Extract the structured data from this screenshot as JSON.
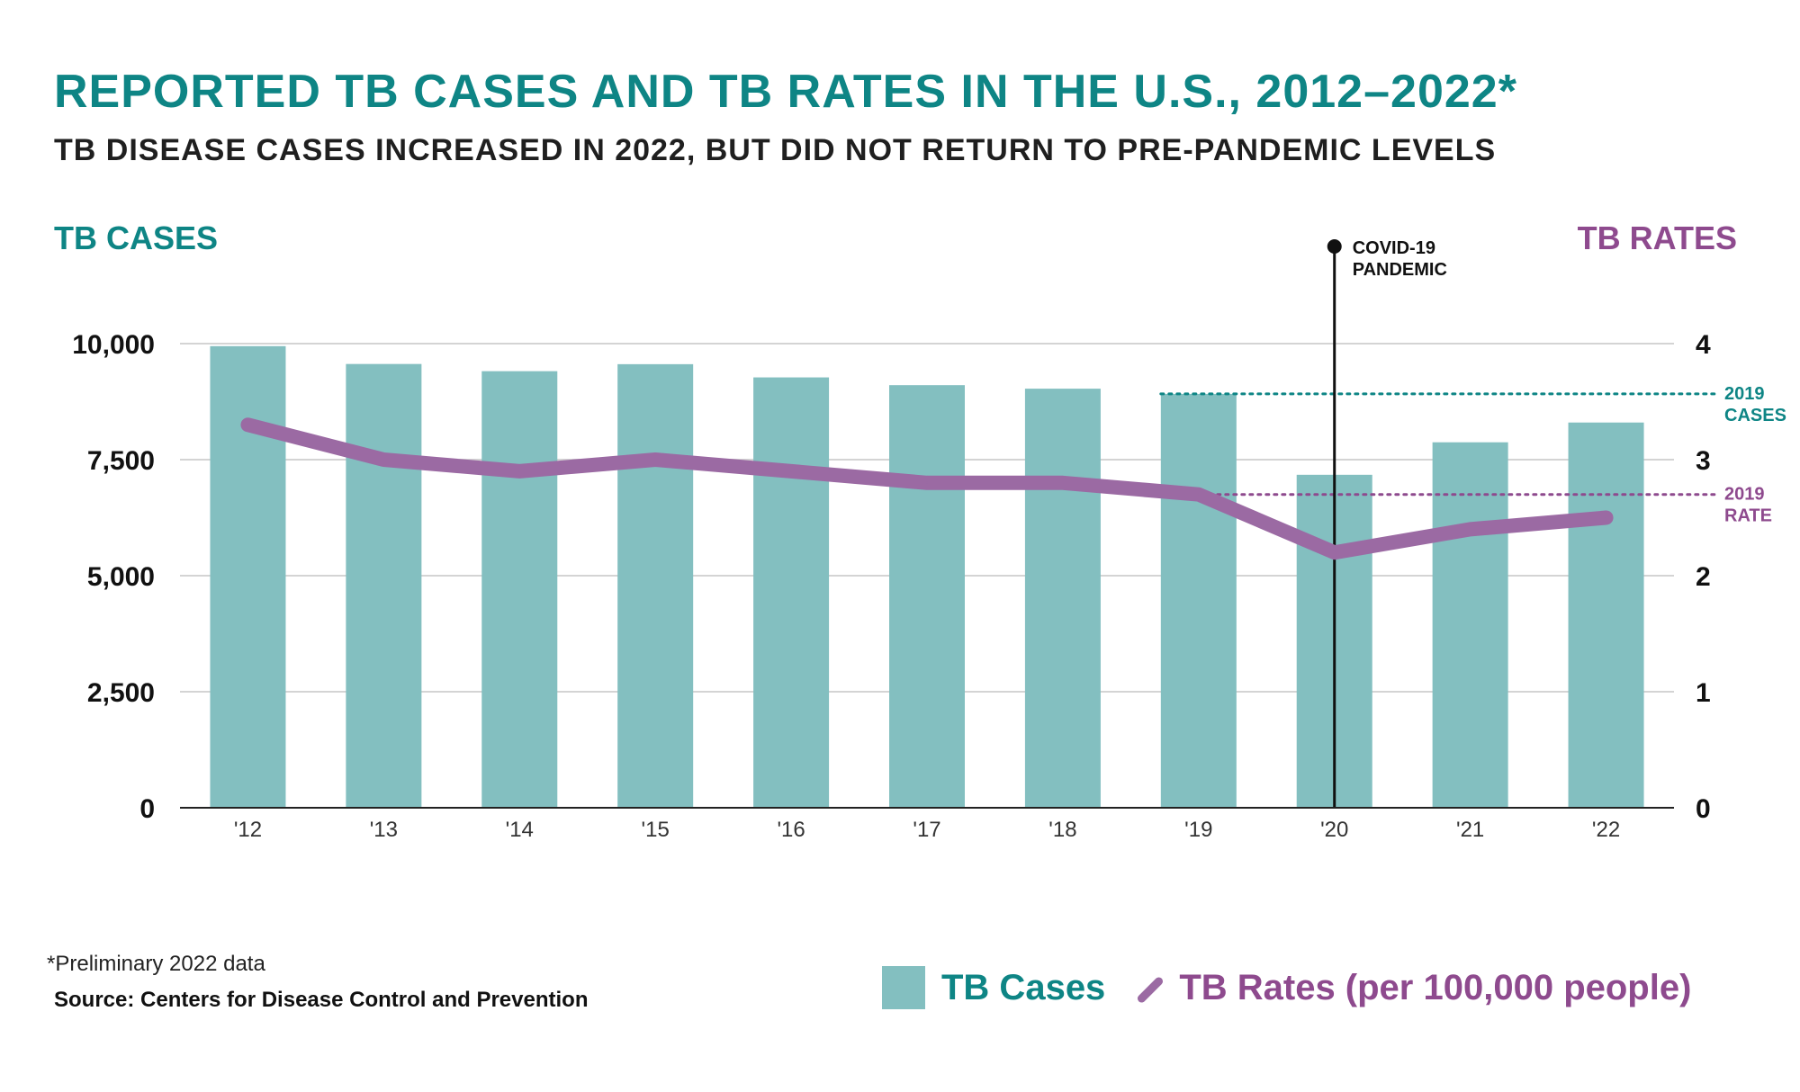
{
  "header": {
    "title": "REPORTED TB CASES AND TB RATES IN THE U.S., 2012–2022*",
    "subtitle": "TB DISEASE CASES INCREASED IN 2022, BUT DID NOT RETURN TO PRE-PANDEMIC LEVELS"
  },
  "chart_data": {
    "type": "bar+line",
    "categories": [
      "'12",
      "'13",
      "'14",
      "'15",
      "'16",
      "'17",
      "'18",
      "'19",
      "'20",
      "'21",
      "'22"
    ],
    "series": [
      {
        "name": "TB Cases",
        "type": "bar",
        "axis": "left",
        "color": "#83bfc0",
        "values": [
          9945,
          9561,
          9406,
          9557,
          9272,
          9105,
          9029,
          8916,
          7174,
          7874,
          8300
        ]
      },
      {
        "name": "TB Rates (per 100,000 people)",
        "type": "line",
        "axis": "right",
        "color": "#9b6aa3",
        "values": [
          3.3,
          3.0,
          2.9,
          3.0,
          2.9,
          2.8,
          2.8,
          2.7,
          2.2,
          2.4,
          2.5
        ]
      }
    ],
    "y_left": {
      "label": "TB CASES",
      "ticks": [
        0,
        2500,
        5000,
        7500,
        10000
      ],
      "tick_labels": [
        "0",
        "2,500",
        "5,000",
        "7,500",
        "10,000"
      ],
      "range": [
        0,
        10000
      ]
    },
    "y_right": {
      "label": "TB RATES",
      "ticks": [
        0,
        1,
        2,
        3,
        4
      ],
      "tick_labels": [
        "0",
        "1",
        "2",
        "3",
        "4"
      ],
      "range": [
        0,
        4
      ]
    },
    "grid": true,
    "reference_lines": [
      {
        "label_lines": [
          "2019",
          "CASES"
        ],
        "value": 8916,
        "axis": "left",
        "from_category": "'19",
        "color": "#0e8585"
      },
      {
        "label_lines": [
          "2019",
          "RATE"
        ],
        "value": 2.7,
        "axis": "right",
        "from_category": "'19",
        "color": "#8e4a8e"
      }
    ],
    "event_marker": {
      "label_lines": [
        "COVID-19",
        "PANDEMIC"
      ],
      "category": "'20"
    },
    "legend": {
      "position": "bottom-right",
      "items": [
        "TB Cases",
        "TB Rates (per 100,000 people)"
      ]
    }
  },
  "footer": {
    "footnote": "*Preliminary 2022 data",
    "source": "Source: Centers for Disease Control and Prevention"
  }
}
